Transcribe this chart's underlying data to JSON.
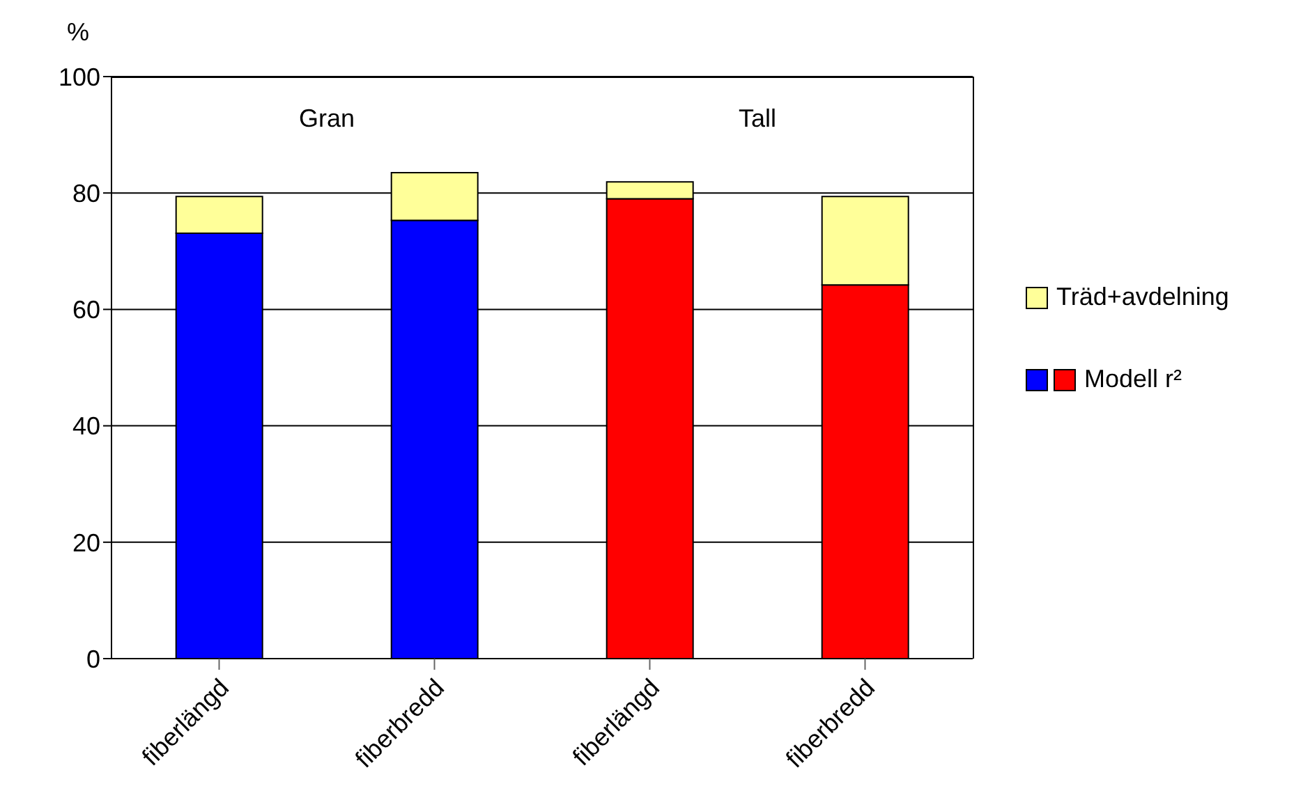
{
  "chart_data": {
    "type": "bar",
    "stacked": true,
    "ylabel": "%",
    "categories": [
      "fiberlängd",
      "fiberbredd",
      "fiberlängd",
      "fiberbredd"
    ],
    "series": [
      {
        "name": "Modell r²",
        "colors": [
          "#0000ff",
          "#0000ff",
          "#ff0000",
          "#ff0000"
        ],
        "values": [
          73.1,
          75.3,
          79.0,
          64.2
        ]
      },
      {
        "name": "Träd+avdelning",
        "color": "#ffff99",
        "values": [
          6.3,
          8.2,
          2.9,
          15.2
        ]
      }
    ],
    "ylim": [
      0,
      100
    ],
    "yticks": [
      0,
      20,
      40,
      60,
      80,
      100
    ],
    "grid": "y",
    "legend": "right",
    "annotations": [
      "Gran",
      "Tall"
    ]
  }
}
